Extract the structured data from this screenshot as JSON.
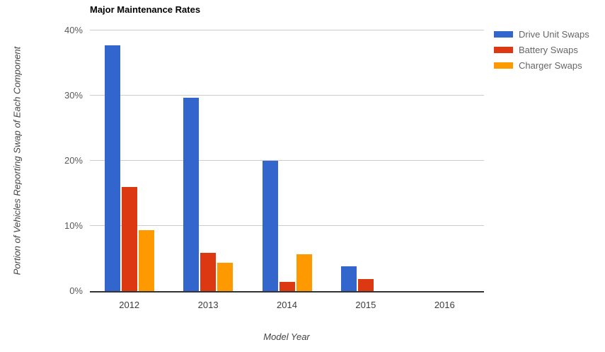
{
  "chart_data": {
    "type": "bar",
    "title": "Major Maintenance Rates",
    "xlabel": "Model Year",
    "ylabel": "Portion of Vehicles Reporting Swap of Each Component",
    "categories": [
      "2012",
      "2013",
      "2014",
      "2015",
      "2016"
    ],
    "series": [
      {
        "name": "Drive Unit Swaps",
        "color": "#3366CC",
        "values": [
          37.7,
          29.7,
          20.0,
          3.8,
          0
        ]
      },
      {
        "name": "Battery Swaps",
        "color": "#DC3912",
        "values": [
          16.0,
          5.9,
          1.4,
          1.9,
          0
        ]
      },
      {
        "name": "Charger Swaps",
        "color": "#FF9900",
        "values": [
          9.4,
          4.3,
          5.7,
          0,
          0
        ]
      }
    ],
    "ylim": [
      0,
      40
    ],
    "ytick_values": [
      0,
      10,
      20,
      30,
      40
    ],
    "ytick_labels": [
      "0%",
      "10%",
      "20%",
      "30%",
      "40%"
    ],
    "grid": true,
    "legend_position": "right"
  },
  "colors": {
    "background": "#ffffff",
    "title_text": "#000000",
    "gridline": "#cccccc",
    "baseline": "#333333",
    "y_tick_text": "#5a5a5a",
    "x_tick_text": "#3c3c3c",
    "axis_title_text": "#444444",
    "legend_text": "#666666"
  }
}
